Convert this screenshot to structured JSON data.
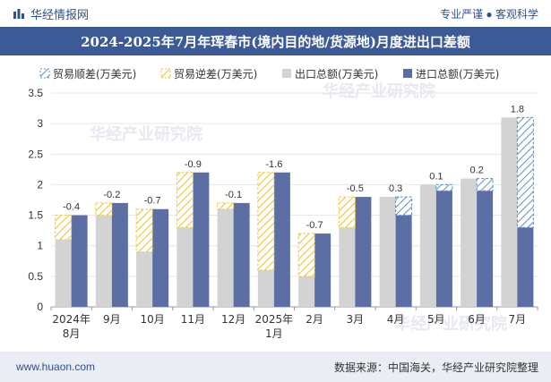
{
  "header": {
    "brand": "华经情报网",
    "tagline": "专业严谨 ● 客观科学",
    "title": "2024-2025年7月年珲春市(境内目的地/货源地)月度进出口差额"
  },
  "footer": {
    "url": "www.huaon.com",
    "source": "数据来源：中国海关，华经产业研究院整理"
  },
  "watermark": "华经产业研究院",
  "colors": {
    "export": "#d3d3d3",
    "import": "#5b6fa5",
    "surplus": "#5b8fc9",
    "deficit": "#f2c94c",
    "title_bg": "#3c5a96"
  },
  "chart_data": {
    "type": "bar",
    "categories": [
      "2024年\n8月",
      "9月",
      "10月",
      "11月",
      "12月",
      "2025年\n1月",
      "2月",
      "3月",
      "4月",
      "5月",
      "6月",
      "7月"
    ],
    "legend": [
      "贸易顺差(万美元)",
      "贸易逆差(万美元)",
      "出口总额(万美元)",
      "进口总额(万美元)"
    ],
    "series": [
      {
        "name": "出口总额(万美元)",
        "values": [
          1.1,
          1.5,
          0.9,
          1.3,
          1.6,
          0.6,
          0.5,
          1.3,
          1.8,
          2.0,
          2.1,
          3.1
        ]
      },
      {
        "name": "进口总额(万美元)",
        "values": [
          1.5,
          1.7,
          1.6,
          2.2,
          1.7,
          2.2,
          1.2,
          1.8,
          1.5,
          1.9,
          1.9,
          1.3
        ]
      }
    ],
    "balance_labels": [
      "-0.4",
      "-0.2",
      "-0.7",
      "-0.9",
      "-0.1",
      "-1.6",
      "-0.7",
      "-0.5",
      "0.3",
      "0.1",
      "0.2",
      "1.8"
    ],
    "ylim": [
      0,
      3.5
    ],
    "yticks": [
      "0",
      "0.5",
      "1",
      "1.5",
      "2",
      "2.5",
      "3",
      "3.5"
    ],
    "grid": true,
    "legend_position": "top"
  }
}
